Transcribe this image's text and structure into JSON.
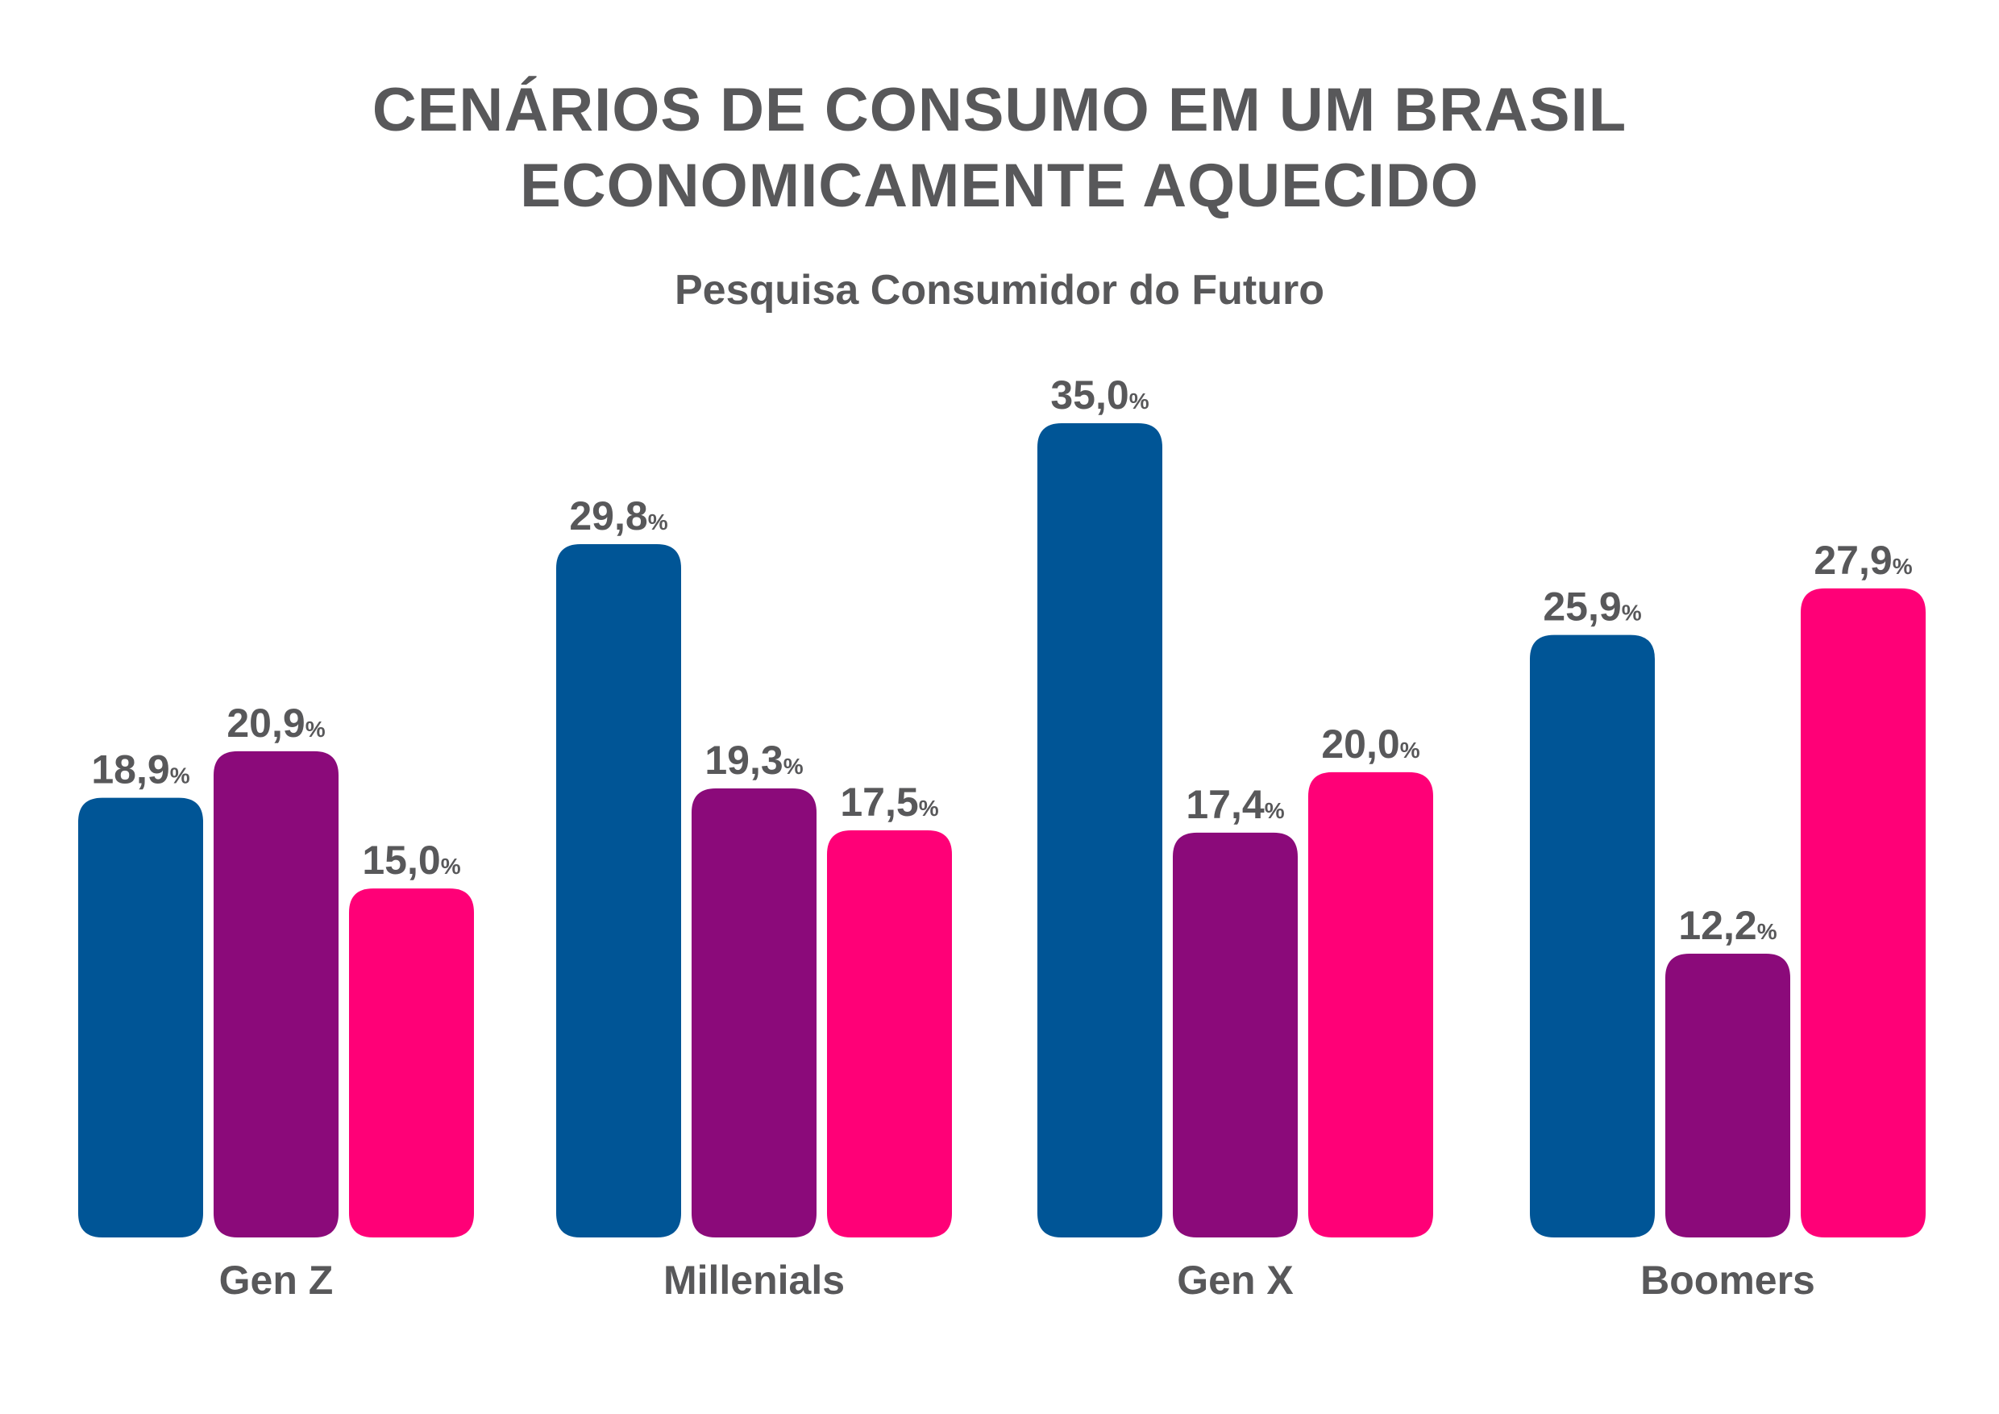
{
  "title_lines": [
    "CENÁRIOS DE CONSUMO EM UM BRASIL",
    "ECONOMICAMENTE AQUECIDO"
  ],
  "subtitle": "Pesquisa Consumidor do Futuro",
  "chart_data": {
    "type": "bar",
    "title": "CENÁRIOS DE CONSUMO EM UM BRASIL ECONOMICAMENTE AQUECIDO",
    "subtitle": "Pesquisa Consumidor do Futuro",
    "categories": [
      "Gen Z",
      "Millenials",
      "Gen X",
      "Boomers"
    ],
    "series": [
      {
        "color": "#005596",
        "values": [
          18.9,
          29.8,
          35.0,
          25.9
        ],
        "labels": [
          "18,9",
          "29,8",
          "35,0",
          "25,9"
        ]
      },
      {
        "color": "#8b0a7a",
        "values": [
          20.9,
          19.3,
          17.4,
          12.2
        ],
        "labels": [
          "20,9",
          "19,3",
          "17,4",
          "12,2"
        ]
      },
      {
        "color": "#ff0077",
        "values": [
          15.0,
          17.5,
          20.0,
          27.9
        ],
        "labels": [
          "15,0",
          "17,5",
          "20,0",
          "27,9"
        ]
      }
    ],
    "value_suffix": "%",
    "ylim": [
      0,
      35.0
    ],
    "grid": false,
    "legend": "none",
    "xlabel": "",
    "ylabel": ""
  }
}
